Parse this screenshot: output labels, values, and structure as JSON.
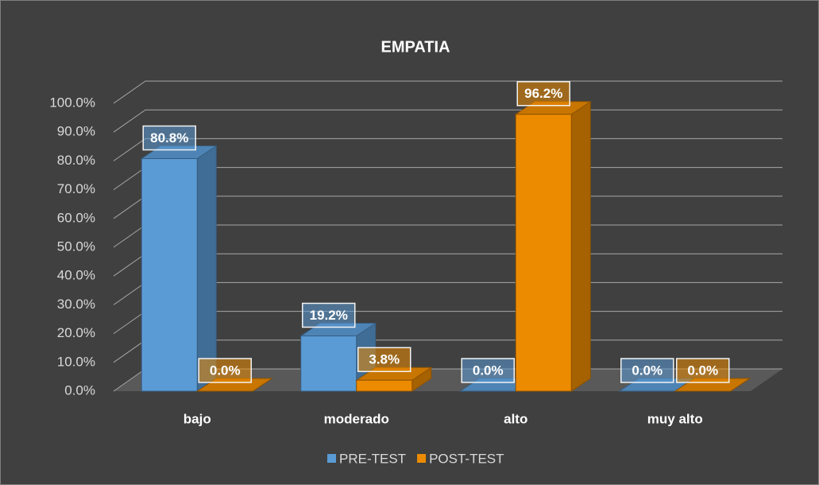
{
  "chart_data": {
    "type": "bar3d",
    "title": "EMPATIA",
    "categories": [
      "bajo",
      "moderado",
      "alto",
      "muy alto"
    ],
    "series": [
      {
        "name": "PRE-TEST",
        "color": "#5b9bd5",
        "values": [
          80.8,
          19.2,
          0,
          0
        ],
        "value_labels": [
          "80.8%",
          "19.2%",
          "0.0%",
          "0.0%"
        ]
      },
      {
        "name": "POST-TEST",
        "color": "#ed8b00",
        "values": [
          0,
          3.8,
          96.2,
          0
        ],
        "value_labels": [
          "0.0%",
          "3.8%",
          "96.2%",
          "0.0%"
        ]
      }
    ],
    "ylim": [
      0,
      100
    ],
    "yticks": [
      {
        "value": 0,
        "label": "0.0%"
      },
      {
        "value": 10,
        "label": "10.0%"
      },
      {
        "value": 20,
        "label": "20.0%"
      },
      {
        "value": 30,
        "label": "30.0%"
      },
      {
        "value": 40,
        "label": "40.0%"
      },
      {
        "value": 50,
        "label": "50.0%"
      },
      {
        "value": 60,
        "label": "60.0%"
      },
      {
        "value": 70,
        "label": "70.0%"
      },
      {
        "value": 80,
        "label": "80.0%"
      },
      {
        "value": 90,
        "label": "90.0%"
      },
      {
        "value": 100,
        "label": "100.0%"
      }
    ],
    "grid": true,
    "legend": "bottom"
  }
}
